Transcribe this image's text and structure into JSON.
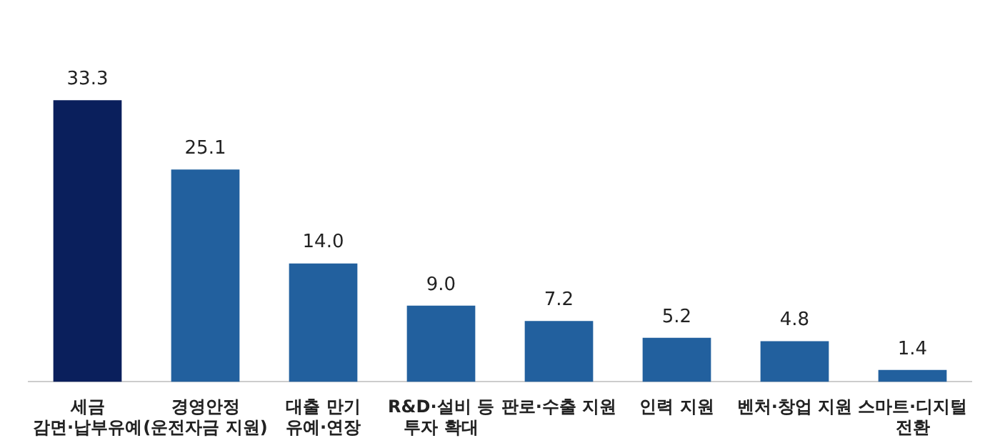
{
  "chart_data": {
    "type": "bar",
    "categories": [
      "세금\n감면·납부유예",
      "경영안정\n(운전자금 지원)",
      "대출 만기\n유예·연장",
      "R&D·설비 등\n투자 확대",
      "판로·수출 지원",
      "인력 지원",
      "벤처·창업 지원",
      "스마트·디지털\n전환"
    ],
    "values": [
      33.3,
      25.1,
      14.0,
      9.0,
      7.2,
      5.2,
      4.8,
      1.4
    ],
    "colors": [
      "#0a1f5c",
      "#22609e",
      "#22609e",
      "#22609e",
      "#22609e",
      "#22609e",
      "#22609e",
      "#22609e"
    ],
    "value_labels": [
      "33.3",
      "25.1",
      "14.0",
      "9.0",
      "7.2",
      "5.2",
      "4.8",
      "1.4"
    ],
    "grid": false,
    "legend": false,
    "tick_labels": "x"
  }
}
